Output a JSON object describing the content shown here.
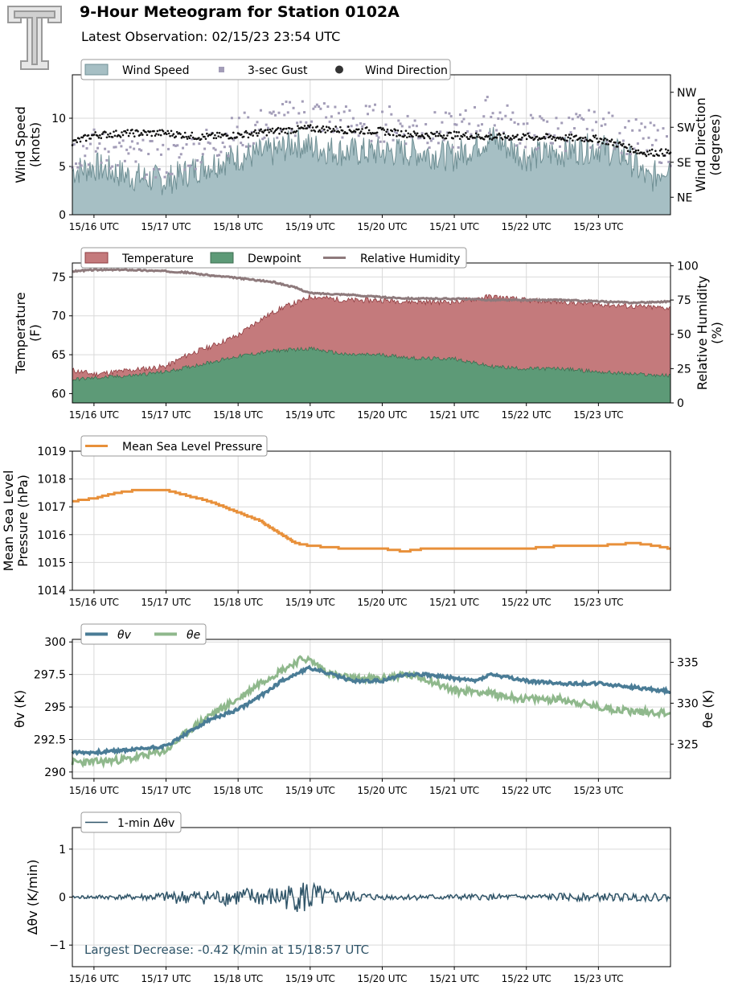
{
  "header": {
    "title": "9-Hour Meteogram for Station 0102A",
    "subtitle": "Latest Observation: 02/15/23 23:54 UTC",
    "logo_icon": "texas-tech-double-t-logo-icon"
  },
  "colors": {
    "wind_speed_fill": "#a6bfc4",
    "wind_speed_line": "#6f8f94",
    "gust": "#a39db8",
    "wind_dir": "#111111",
    "temperature_fill": "#c47a7c",
    "temperature_line": "#8e3c40",
    "dewpoint_fill": "#5d9a77",
    "dewpoint_line": "#3d6e50",
    "rh_line": "#8e7a7c",
    "pressure_line": "#e8903a",
    "theta_v": "#4a7c96",
    "theta_e": "#8fb88c",
    "dtheta": "#2f5468",
    "annotation_text": "#2f5468"
  },
  "chart_data": [
    {
      "id": "wind",
      "type": "area",
      "xticks": [
        "15/16 UTC",
        "15/17 UTC",
        "15/18 UTC",
        "15/19 UTC",
        "15/20 UTC",
        "15/21 UTC",
        "15/22 UTC",
        "15/23 UTC"
      ],
      "xlim_hours": [
        15.7,
        24.0
      ],
      "ylabel": "Wind Speed\n(knots)",
      "ylim": [
        0,
        14.5
      ],
      "yticks": [
        0,
        5,
        10
      ],
      "y2label": "Wind Direction\n(degrees)",
      "y2ticks": [
        "NE",
        "SE",
        "SW",
        "NW"
      ],
      "y2tick_values": [
        45,
        135,
        225,
        315
      ],
      "y2lim": [
        0,
        360
      ],
      "legend": [
        "Wind Speed",
        "3-sec Gust",
        "Wind Direction"
      ],
      "series": [
        {
          "name": "Wind Speed",
          "x": [
            15.7,
            16.0,
            16.5,
            17.0,
            17.5,
            18.0,
            18.5,
            18.8,
            19.0,
            19.5,
            20.0,
            20.5,
            21.0,
            21.5,
            22.0,
            22.5,
            23.0,
            23.4,
            23.7,
            24.0
          ],
          "values": [
            4.5,
            5.0,
            4.0,
            3.5,
            5.0,
            6.0,
            6.5,
            7.5,
            7.0,
            6.5,
            6.5,
            6.5,
            6.0,
            8.0,
            6.0,
            6.5,
            7.0,
            6.0,
            3.5,
            5.5
          ]
        },
        {
          "name": "3-sec Gust",
          "x": [
            15.7,
            16.0,
            16.5,
            17.0,
            17.5,
            18.0,
            18.5,
            19.0,
            19.5,
            20.0,
            20.5,
            21.0,
            21.5,
            22.0,
            22.5,
            23.0,
            23.5,
            24.0
          ],
          "values": [
            6.5,
            7.0,
            6.0,
            5.5,
            7.0,
            8.5,
            9.5,
            10.5,
            9.5,
            9.5,
            9.0,
            8.5,
            10.5,
            8.5,
            8.5,
            9.0,
            8.0,
            7.0
          ]
        },
        {
          "name": "Wind Direction",
          "x": [
            15.7,
            16.0,
            16.5,
            17.0,
            17.5,
            18.0,
            18.5,
            19.0,
            19.5,
            20.0,
            20.5,
            21.0,
            21.5,
            22.0,
            22.5,
            23.0,
            23.3,
            23.6,
            24.0
          ],
          "values": [
            185,
            205,
            210,
            210,
            200,
            205,
            215,
            222,
            218,
            215,
            205,
            205,
            200,
            200,
            198,
            195,
            180,
            160,
            160
          ]
        }
      ]
    },
    {
      "id": "temp",
      "type": "area",
      "xticks": [
        "15/16 UTC",
        "15/17 UTC",
        "15/18 UTC",
        "15/19 UTC",
        "15/20 UTC",
        "15/21 UTC",
        "15/22 UTC",
        "15/23 UTC"
      ],
      "xlim_hours": [
        15.7,
        24.0
      ],
      "ylabel": "Temperature\n(F)",
      "ylim": [
        58.8,
        76.8
      ],
      "yticks": [
        60,
        65,
        70,
        75
      ],
      "y2label": "Relative Humidity\n(%)",
      "y2lim": [
        0,
        102
      ],
      "y2ticks": [
        0,
        25,
        50,
        75,
        100
      ],
      "legend": [
        "Temperature",
        "Dewpoint",
        "Relative Humidity"
      ],
      "series": [
        {
          "name": "Temperature",
          "x": [
            15.7,
            16.0,
            16.5,
            17.0,
            17.3,
            17.6,
            18.0,
            18.3,
            18.6,
            18.9,
            19.0,
            19.5,
            20.0,
            20.5,
            21.0,
            21.5,
            22.0,
            22.5,
            23.0,
            23.5,
            24.0
          ],
          "values": [
            63.0,
            62.5,
            63.0,
            63.5,
            65.0,
            66.0,
            67.5,
            69.5,
            71.0,
            72.0,
            72.5,
            72.0,
            72.0,
            71.8,
            71.8,
            72.5,
            72.0,
            71.8,
            71.5,
            71.2,
            71.0
          ]
        },
        {
          "name": "Dewpoint",
          "x": [
            15.7,
            16.0,
            16.5,
            17.0,
            17.5,
            18.0,
            18.5,
            19.0,
            19.5,
            20.0,
            20.5,
            21.0,
            21.5,
            22.0,
            22.5,
            23.0,
            23.5,
            24.0
          ],
          "values": [
            61.8,
            62.0,
            62.3,
            62.8,
            63.8,
            64.8,
            65.5,
            65.8,
            65.0,
            65.0,
            64.5,
            64.5,
            63.5,
            63.2,
            63.2,
            62.8,
            62.5,
            62.3
          ]
        },
        {
          "name": "Relative Humidity",
          "x": [
            15.7,
            16.0,
            16.5,
            17.0,
            17.3,
            17.6,
            18.0,
            18.5,
            18.8,
            19.0,
            19.5,
            20.0,
            20.5,
            21.0,
            21.5,
            22.0,
            22.5,
            23.0,
            23.5,
            24.0
          ],
          "values": [
            96,
            97,
            97,
            96,
            95,
            93,
            91,
            88,
            84,
            80,
            79,
            77,
            76,
            76,
            75,
            75,
            75,
            74,
            73,
            74
          ]
        }
      ]
    },
    {
      "id": "pressure",
      "type": "line",
      "xticks": [
        "15/16 UTC",
        "15/17 UTC",
        "15/18 UTC",
        "15/19 UTC",
        "15/20 UTC",
        "15/21 UTC",
        "15/22 UTC",
        "15/23 UTC"
      ],
      "xlim_hours": [
        15.7,
        24.0
      ],
      "ylabel": "Mean Sea Level\nPressure (hPa)",
      "ylim": [
        1014,
        1019
      ],
      "yticks": [
        1014,
        1015,
        1016,
        1017,
        1018,
        1019
      ],
      "legend": [
        "Mean Sea Level Pressure"
      ],
      "series": [
        {
          "name": "Mean Sea Level Pressure",
          "x": [
            15.7,
            16.0,
            16.3,
            16.6,
            17.0,
            17.3,
            17.6,
            18.0,
            18.3,
            18.6,
            18.8,
            19.0,
            19.5,
            20.0,
            20.3,
            20.6,
            21.0,
            21.3,
            21.7,
            22.0,
            22.5,
            23.0,
            23.5,
            23.8,
            24.0
          ],
          "values": [
            1017.2,
            1017.3,
            1017.5,
            1017.6,
            1017.6,
            1017.4,
            1017.2,
            1016.8,
            1016.5,
            1016.0,
            1015.7,
            1015.6,
            1015.5,
            1015.5,
            1015.4,
            1015.5,
            1015.5,
            1015.5,
            1015.5,
            1015.5,
            1015.6,
            1015.6,
            1015.7,
            1015.6,
            1015.5
          ]
        }
      ]
    },
    {
      "id": "theta",
      "type": "line",
      "xticks": [
        "15/16 UTC",
        "15/17 UTC",
        "15/18 UTC",
        "15/19 UTC",
        "15/20 UTC",
        "15/21 UTC",
        "15/22 UTC",
        "15/23 UTC"
      ],
      "xlim_hours": [
        15.7,
        24.0
      ],
      "ylabel": "θv (K)",
      "ylim": [
        289.5,
        300.2
      ],
      "yticks": [
        290.0,
        292.5,
        295.0,
        297.5,
        300.0
      ],
      "y2label": "θe (K)",
      "y2lim": [
        320.8,
        337.8
      ],
      "y2ticks": [
        325,
        330,
        335
      ],
      "legend": [
        "θv",
        "θe"
      ],
      "series": [
        {
          "name": "θv",
          "x": [
            15.7,
            16.0,
            16.5,
            17.0,
            17.3,
            17.6,
            18.0,
            18.3,
            18.6,
            18.9,
            19.0,
            19.3,
            19.6,
            20.0,
            20.3,
            20.6,
            21.0,
            21.3,
            21.5,
            22.0,
            22.5,
            23.0,
            23.5,
            24.0
          ],
          "values": [
            291.5,
            291.5,
            291.7,
            292.0,
            293.0,
            294.0,
            294.8,
            295.8,
            297.0,
            297.8,
            298.0,
            297.5,
            297.0,
            297.0,
            297.5,
            297.5,
            297.2,
            297.0,
            297.5,
            297.0,
            296.8,
            296.8,
            296.5,
            296.2
          ]
        },
        {
          "name": "θe",
          "x": [
            15.7,
            16.0,
            16.5,
            17.0,
            17.3,
            17.6,
            18.0,
            18.3,
            18.6,
            18.9,
            19.0,
            19.3,
            19.6,
            20.0,
            20.3,
            20.6,
            21.0,
            21.3,
            21.6,
            22.0,
            22.5,
            23.0,
            23.5,
            24.0
          ],
          "values": [
            322.8,
            322.8,
            323.2,
            324.2,
            326.5,
            328.5,
            330.5,
            332.5,
            334.0,
            335.5,
            335.2,
            333.5,
            333.0,
            333.0,
            333.5,
            333.0,
            331.5,
            331.5,
            331.0,
            330.5,
            330.5,
            329.5,
            329.0,
            328.8
          ]
        }
      ]
    },
    {
      "id": "dtheta",
      "type": "line",
      "xticks": [
        "15/16 UTC",
        "15/17 UTC",
        "15/18 UTC",
        "15/19 UTC",
        "15/20 UTC",
        "15/21 UTC",
        "15/22 UTC",
        "15/23 UTC"
      ],
      "xlim_hours": [
        15.7,
        24.0
      ],
      "ylabel": "Δθv (K/min)",
      "ylim": [
        -1.45,
        1.45
      ],
      "yticks": [
        -1,
        0,
        1
      ],
      "legend": [
        "1-min Δθv"
      ],
      "annotation": "Largest Decrease: -0.42 K/min at 15/18:57 UTC",
      "series": [
        {
          "name": "1-min Δθv",
          "x": [
            15.7,
            16.0,
            16.4,
            16.8,
            17.2,
            17.6,
            18.0,
            18.4,
            18.8,
            18.95,
            19.2,
            19.6,
            20.0,
            20.5,
            21.0,
            21.5,
            22.0,
            22.5,
            23.0,
            23.5,
            24.0
          ],
          "amplitude": [
            0.02,
            0.05,
            0.05,
            0.08,
            0.15,
            0.15,
            0.2,
            0.2,
            0.3,
            0.42,
            0.18,
            0.12,
            0.06,
            0.06,
            0.06,
            0.06,
            0.06,
            0.08,
            0.08,
            0.08,
            0.08
          ]
        }
      ]
    }
  ]
}
